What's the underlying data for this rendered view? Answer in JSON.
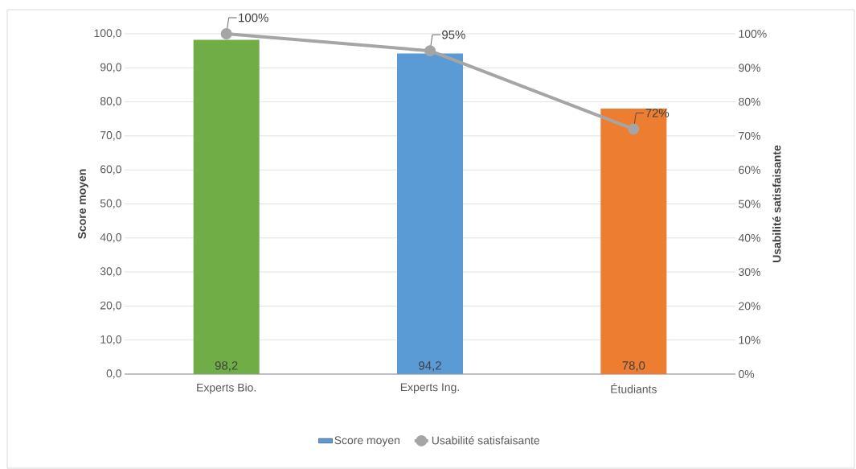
{
  "chart_data": {
    "type": "bar",
    "categories": [
      "Experts Bio.",
      "Experts Ing.",
      "Étudiants"
    ],
    "ylabel": "Score moyen",
    "y2label": "Usabilité satisfaisante",
    "ylim": [
      0,
      100
    ],
    "yticks": [
      {
        "value": 0,
        "label": "0,0"
      },
      {
        "value": 10,
        "label": "10,0"
      },
      {
        "value": 20,
        "label": "20,0"
      },
      {
        "value": 30,
        "label": "30,0"
      },
      {
        "value": 40,
        "label": "40,0"
      },
      {
        "value": 50,
        "label": "50,0"
      },
      {
        "value": 60,
        "label": "60,0"
      },
      {
        "value": 70,
        "label": "70,0"
      },
      {
        "value": 80,
        "label": "80,0"
      },
      {
        "value": 90,
        "label": "90,0"
      },
      {
        "value": 100,
        "label": "100,0"
      }
    ],
    "y2lim": [
      0,
      100
    ],
    "y2ticks": [
      {
        "value": 0,
        "label": "0%"
      },
      {
        "value": 10,
        "label": "10%"
      },
      {
        "value": 20,
        "label": "20%"
      },
      {
        "value": 30,
        "label": "30%"
      },
      {
        "value": 40,
        "label": "40%"
      },
      {
        "value": 50,
        "label": "50%"
      },
      {
        "value": 60,
        "label": "60%"
      },
      {
        "value": 70,
        "label": "70%"
      },
      {
        "value": 80,
        "label": "80%"
      },
      {
        "value": 90,
        "label": "90%"
      },
      {
        "value": 100,
        "label": "100%"
      }
    ],
    "grid": "y",
    "legend": "bottom",
    "marker": "circle",
    "series": [
      {
        "name": "Score moyen",
        "type": "bar",
        "color": "#5b9bd5",
        "colors": [
          "#70ad47",
          "#5b9bd5",
          "#ed7d31"
        ],
        "values": [
          98.2,
          94.2,
          78.0
        ],
        "value_labels": [
          "98,2",
          "94,2",
          "78,0"
        ]
      },
      {
        "name": "Usabilité satisfaisante",
        "type": "line",
        "axis": "y2",
        "color": "#a5a5a5",
        "values": [
          100,
          95,
          72
        ],
        "value_labels": [
          "100%",
          "95%",
          "72%"
        ]
      }
    ]
  }
}
